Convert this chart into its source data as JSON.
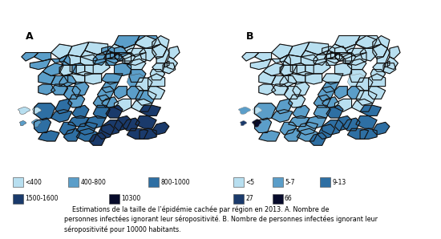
{
  "bg_color": "#ffffff",
  "caption": "    Estimations de la taille de l’épidémie cachée par région en 2013. A. Nombre de\npersonnes infectées ignorant leur séropositivité. B. Nombre de personnes infectées ignorant leur\nséropositivité pour 10000 habitants.",
  "label_A": "A",
  "label_B": "B",
  "colors_A": {
    "c1": "#b8dff0",
    "c2": "#5b9ec9",
    "c3": "#2e6fa3",
    "c4": "#1a3a6b",
    "c5": "#070b2b"
  },
  "colors_B": {
    "c1": "#b8dff0",
    "c2": "#5b9ec9",
    "c3": "#2e6fa3",
    "c4": "#1a3a6b",
    "c5": "#070b2b"
  },
  "legend_A_row1_labels": [
    "<400",
    "400-800",
    "800-1000"
  ],
  "legend_A_row1_colors": [
    "#b8dff0",
    "#5b9ec9",
    "#2e6fa3"
  ],
  "legend_A_row2_labels": [
    "1500-1600",
    "10300"
  ],
  "legend_A_row2_colors": [
    "#1a3a6b",
    "#070b2b"
  ],
  "legend_B_row1_labels": [
    "<5",
    "5-7",
    "9-13"
  ],
  "legend_B_row1_colors": [
    "#b8dff0",
    "#5b9ec9",
    "#2e6fa3"
  ],
  "legend_B_row2_labels": [
    "27",
    "66"
  ],
  "legend_B_row2_colors": [
    "#1a3a6b",
    "#070b2b"
  ]
}
